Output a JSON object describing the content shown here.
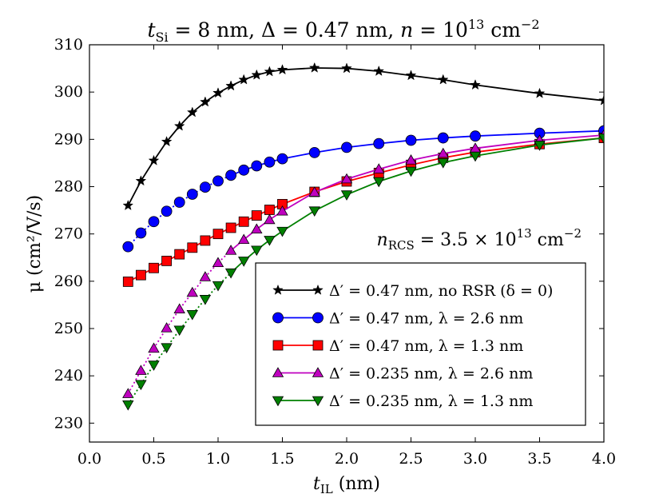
{
  "chart_data": {
    "type": "line",
    "title": "t_Si = 8 nm, Δ = 0.47 nm, n = 10^13 cm^-2",
    "title_parts": {
      "t": "t",
      "si": "Si",
      "mid": " = 8 nm, Δ = 0.47 nm, ",
      "n": "n",
      "eq": " = 10",
      "exp": "13",
      "unit": " cm",
      "unit_exp": "−2"
    },
    "xlabel": "t_IL (nm)",
    "xlabel_parts": {
      "t": "t",
      "sub": "IL",
      "rest": " (nm)"
    },
    "ylabel": "μ (cm²/V/s)",
    "xlim": [
      0.0,
      4.0
    ],
    "ylim": [
      226,
      310
    ],
    "xticks": [
      0.0,
      0.5,
      1.0,
      1.5,
      2.0,
      2.5,
      3.0,
      3.5,
      4.0
    ],
    "xtick_labels": [
      "0.0",
      "0.5",
      "1.0",
      "1.5",
      "2.0",
      "2.5",
      "3.0",
      "3.5",
      "4.0"
    ],
    "yticks": [
      230,
      240,
      250,
      260,
      270,
      280,
      290,
      300,
      310
    ],
    "ytick_labels": [
      "230",
      "240",
      "250",
      "260",
      "270",
      "280",
      "290",
      "300",
      "310"
    ],
    "annotation": "n_RCS = 3.5 × 10^13 cm^-2",
    "annotation_parts": {
      "n": "n",
      "sub": "RCS",
      "eq": " = 3.5 × 10",
      "exp": "13",
      "unit": " cm",
      "unit_exp": "−2"
    },
    "legend_position": "lower-right",
    "series": [
      {
        "name": "Δ′ = 0.47 nm, no RSR (δ = 0)",
        "color": "#000000",
        "marker": "star",
        "line": "solid",
        "x": [
          0.3,
          0.4,
          0.5,
          0.6,
          0.7,
          0.8,
          0.9,
          1.0,
          1.1,
          1.2,
          1.3,
          1.4,
          1.5,
          1.75,
          2.0,
          2.25,
          2.5,
          2.75,
          3.0,
          3.5,
          4.0
        ],
        "y": [
          276.0,
          281.2,
          285.5,
          289.5,
          292.8,
          295.7,
          297.9,
          299.8,
          301.3,
          302.6,
          303.6,
          304.3,
          304.7,
          305.1,
          305.0,
          304.4,
          303.5,
          302.6,
          301.5,
          299.7,
          298.2
        ]
      },
      {
        "name": "Δ′ = 0.47 nm, λ = 2.6 nm",
        "color": "#0000ff",
        "marker": "circle",
        "line": "dotted-solid",
        "x": [
          0.3,
          0.4,
          0.5,
          0.6,
          0.7,
          0.8,
          0.9,
          1.0,
          1.1,
          1.2,
          1.3,
          1.4,
          1.5,
          1.75,
          2.0,
          2.25,
          2.5,
          2.75,
          3.0,
          3.5,
          4.0
        ],
        "y": [
          267.3,
          270.2,
          272.6,
          274.8,
          276.7,
          278.4,
          279.9,
          281.2,
          282.4,
          283.5,
          284.4,
          285.2,
          285.9,
          287.2,
          288.3,
          289.1,
          289.8,
          290.3,
          290.7,
          291.3,
          291.8
        ]
      },
      {
        "name": "Δ′ = 0.47 nm, λ = 1.3 nm",
        "color": "#ff0000",
        "marker": "square",
        "line": "solid",
        "x": [
          0.3,
          0.4,
          0.5,
          0.6,
          0.7,
          0.8,
          0.9,
          1.0,
          1.1,
          1.2,
          1.3,
          1.4,
          1.5,
          1.75,
          2.0,
          2.25,
          2.5,
          2.75,
          3.0,
          3.5,
          4.0
        ],
        "y": [
          259.9,
          261.3,
          262.8,
          264.3,
          265.7,
          267.1,
          268.6,
          270.0,
          271.3,
          272.6,
          273.9,
          275.1,
          276.3,
          278.9,
          281.1,
          282.9,
          284.6,
          286.1,
          287.3,
          289.0,
          290.3
        ]
      },
      {
        "name": "Δ′ = 0.235 nm, λ = 2.6 nm",
        "color": "#bf00bf",
        "marker": "triangle-up",
        "line": "dotted-solid",
        "x": [
          0.3,
          0.4,
          0.5,
          0.6,
          0.7,
          0.8,
          0.9,
          1.0,
          1.1,
          1.2,
          1.3,
          1.4,
          1.5,
          1.75,
          2.0,
          2.25,
          2.5,
          2.75,
          3.0,
          3.5,
          4.0
        ],
        "y": [
          236.2,
          241.1,
          245.8,
          250.1,
          254.1,
          257.6,
          260.9,
          263.9,
          266.5,
          268.8,
          271.0,
          273.0,
          274.8,
          278.8,
          281.6,
          283.7,
          285.6,
          287.0,
          288.1,
          289.8,
          290.9
        ]
      },
      {
        "name": "Δ′ = 0.235 nm, λ = 1.3 nm",
        "color": "#008000",
        "marker": "triangle-down",
        "line": "dotted-solid",
        "x": [
          0.3,
          0.4,
          0.5,
          0.6,
          0.7,
          0.8,
          0.9,
          1.0,
          1.1,
          1.2,
          1.3,
          1.4,
          1.5,
          1.75,
          2.0,
          2.25,
          2.5,
          2.75,
          3.0,
          3.5,
          4.0
        ],
        "y": [
          233.9,
          238.2,
          242.3,
          246.0,
          249.7,
          253.0,
          256.2,
          259.1,
          261.8,
          264.3,
          266.6,
          268.7,
          270.6,
          274.9,
          278.3,
          281.1,
          283.3,
          285.1,
          286.5,
          288.8,
          290.3
        ]
      }
    ]
  }
}
